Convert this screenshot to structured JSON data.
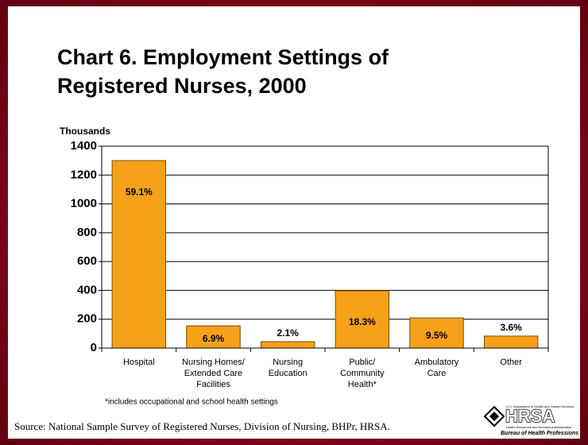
{
  "chart_data": {
    "type": "bar",
    "title": [
      "Chart 6. Employment Settings of",
      "Registered Nurses, 2000"
    ],
    "y_label": "Thousands",
    "categories": [
      [
        "Hospital"
      ],
      [
        "Nursing Homes/",
        "Extended Care",
        "Facilities"
      ],
      [
        "Nursing",
        "Education"
      ],
      [
        "Public/",
        "Community",
        "Health*"
      ],
      [
        "Ambulatory",
        "Care"
      ],
      [
        "Other"
      ]
    ],
    "values": [
      1300,
      154,
      44,
      397,
      209,
      83
    ],
    "annotations": [
      "59.1%",
      "6.9%",
      "2.1%",
      "18.3%",
      "9.5%",
      "3.6%"
    ],
    "color": "#f7a11a",
    "ylim": [
      0,
      1400
    ],
    "yticks": [
      0,
      200,
      400,
      600,
      800,
      1000,
      1200,
      1400
    ],
    "grid": true,
    "footnote": "*includes occupational and school health settings",
    "source": "Source: National Sample Survey of Registered Nurses, Division of Nursing, BHPr, HRSA.",
    "logo": {
      "top": "U.S. Department of Health and Human Services",
      "name": "HRSA",
      "sub": "Health Resources and Services Administration",
      "bureau": "Bureau of Health Professions"
    }
  }
}
